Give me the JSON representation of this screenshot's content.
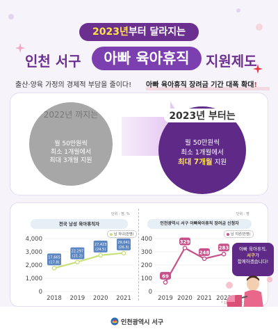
{
  "header": {
    "banner_highlight": "2023년",
    "banner_rest": "부터 달라지는",
    "title_left": "인천 서구",
    "title_pill": "아빠 육아휴직",
    "title_right": "지원제도"
  },
  "subtitle": {
    "left": "출산·양육 가정의 경제적 부담을 줄이다!",
    "right_main": "아빠 육아휴직 장려금 기간 대폭 확대",
    "right_mark": "!"
  },
  "comparison": {
    "before": {
      "label": "2022년 까지는",
      "line1": "월 50만원씩",
      "line2": "최소 1개월에서",
      "line3": "최대 3개월 지원"
    },
    "after": {
      "label": "2023년 부터는",
      "line1": "월 50만원씩",
      "line2": "최소 1개월에서",
      "line3_em": "최대 7개월",
      "line3_rest": " 지원"
    }
  },
  "charts": {
    "left_unit": "단위 : 명, %",
    "right_unit": "단위 : 명",
    "left_legend": "남 자녀(만명)",
    "right_legend": "남 지원(만명)",
    "right_footnote": "* 11월 말 기준"
  },
  "chart_data": [
    {
      "type": "line",
      "title": "전국 남성 육아휴직자",
      "x": [
        "2018",
        "2019",
        "2020",
        "2021"
      ],
      "ylim": [
        0,
        4000
      ],
      "yticks": [
        "0",
        "1,000",
        "2,000",
        "3,000",
        "4,000"
      ],
      "series": [
        {
          "values": [
            17665,
            22297,
            27423,
            29041
          ],
          "data_labels": [
            "17,665\n(17.8)",
            "22,297\n(21.2)",
            "27,423\n(24.5)",
            "29,041\n(26.3)"
          ],
          "color": "#c9e07a"
        }
      ]
    },
    {
      "type": "line",
      "title": "인천광역시 서구 아빠육아휴직 장려금 신청자",
      "x": [
        "2019",
        "2020",
        "2021",
        "2022"
      ],
      "ylim": [
        0,
        400
      ],
      "yticks": [
        "0",
        "100",
        "200",
        "300",
        "400"
      ],
      "series": [
        {
          "values": [
            69,
            329,
            248,
            283
          ],
          "data_labels": [
            "69",
            "329",
            "248",
            "283"
          ],
          "color": "#c6508a"
        }
      ]
    }
  ],
  "side_bubble": {
    "line1": "아빠 육아휴직,",
    "line2_hl": "서구",
    "line2_rest": "가",
    "line3": "함께하겠습니다!"
  },
  "footer": {
    "org": "인천광역시 서구"
  },
  "colors": {
    "purple_dark": "#5e2987",
    "purple": "#7b3fb0",
    "yellow": "#ffe14d",
    "gray_circle": "#a7a7a7",
    "green_line": "#c9e07a",
    "pink_line": "#c6508a"
  }
}
